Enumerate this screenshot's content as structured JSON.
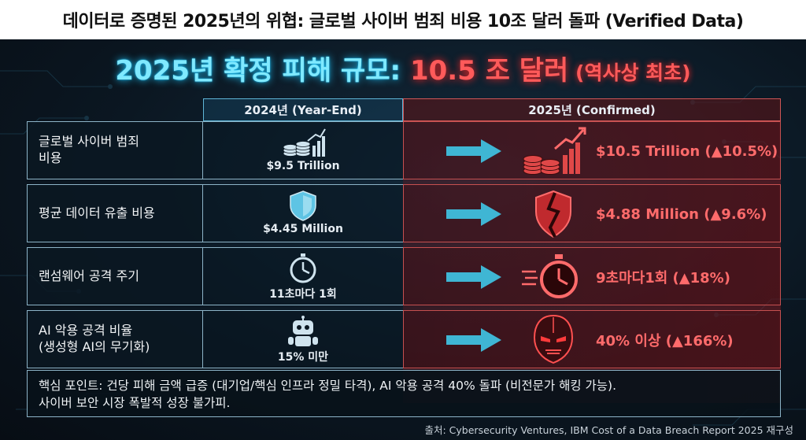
{
  "title": "데이터로 증명된 2025년의 위협: 글로벌 사이버 범죄 비용 10조 달러 돌파 (Verified Data)",
  "headline": {
    "main": "2025년 확정 피해 규모: ",
    "value": "10.5 조 달러",
    "note": " (역사상 최초)"
  },
  "columns": {
    "left": "2024년 (Year-End)",
    "right": "2025년 (Confirmed)"
  },
  "rows": [
    {
      "label_line1": "글로벌 사이버 범죄",
      "label_line2": "비용",
      "icon_2024": "coin-chart-icon",
      "value_2024": "$9.5 Trillion",
      "icon_2025": "coin-chart-icon",
      "value_2025": "$10.5 Trillion (▲10.5%)"
    },
    {
      "label_line1": "평균 데이터 유출 비용",
      "label_line2": "",
      "icon_2024": "shield-icon",
      "value_2024": "$4.45 Million",
      "icon_2025": "broken-shield-icon",
      "value_2025": "$4.88 Million (▲9.6%)"
    },
    {
      "label_line1": "랜섬웨어 공격 주기",
      "label_line2": "",
      "icon_2024": "stopwatch-icon",
      "value_2024": "11초마다 1회",
      "icon_2025": "stopwatch-icon",
      "value_2025": "9초마다1회 (▲18%)"
    },
    {
      "label_line1": "AI 악용 공격 비율",
      "label_line2": "(생성형 AI의 무기화)",
      "icon_2024": "robot-icon",
      "value_2024": "15% 미만",
      "icon_2025": "cyborg-icon",
      "value_2025": "40% 이상 (▲166%)"
    }
  ],
  "keypoint": {
    "line1": "핵심 포인트: 건당 피해 금액 급증 (대기업/핵심 인프라 정밀 타격), AI 악용 공격 40% 돌파 (비전문가 해킹 가능).",
    "line2": "사이버 보안 시장 폭발적 성장 불가피."
  },
  "source": "출처: Cybersecurity Ventures, IBM Cost of a Data Breach Report 2025 재구성",
  "colors": {
    "cyan_accent": "#7fe9ff",
    "red_accent": "#ff5a5a",
    "panel_bg": "#0b1722"
  }
}
